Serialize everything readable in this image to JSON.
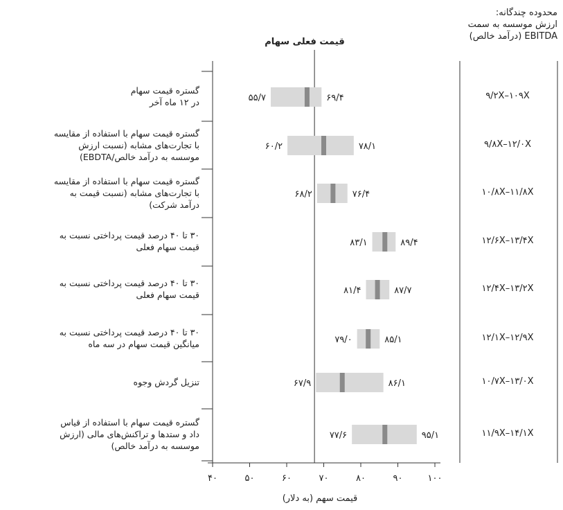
{
  "chart_data": {
    "type": "bar",
    "title": "قیمت فعلی سهام",
    "xlabel": "قیمت سهم (به دلار)",
    "xlim": [
      40,
      100
    ],
    "x_ticks": [
      "۴۰",
      "۵۰",
      "۶۰",
      "۷۰",
      "۸۰",
      "۹۰",
      "۱۰۰"
    ],
    "current_price": 67.5,
    "multiples_header": [
      "محدوده چندگانه:",
      "ارزش موسسه به سمت",
      "EBITDA (درآمد خالص)"
    ],
    "rows": [
      {
        "label": [
          "گستره قیمت سهام",
          "در ۱۲ ماه آخر"
        ],
        "low": 55.7,
        "high": 69.4,
        "mid": 65.5,
        "low_label": "۵۵/۷",
        "high_label": "۶۹/۴",
        "multiple": "۹/۲X–۱۰۹X"
      },
      {
        "label": [
          "گستره قیمت سهام با استفاده از مقایسه",
          "با تجارت‌های مشابه (نسبت ارزش",
          "موسسه به درآمد خالص/EBDTA)"
        ],
        "low": 60.2,
        "high": 78.1,
        "mid": 70.0,
        "low_label": "۶۰/۲",
        "high_label": "۷۸/۱",
        "multiple": "۹/۸X–۱۲/۰X"
      },
      {
        "label": [
          "گستره قیمت سهام با استفاده از مقایسه",
          "با تجارت‌های مشابه (نسبت قیمت به",
          "درآمد شرکت)"
        ],
        "low": 68.2,
        "high": 76.4,
        "mid": 72.5,
        "low_label": "۶۸/۲",
        "high_label": "۷۶/۴",
        "multiple": "۱۰/۸X–۱۱/۸X"
      },
      {
        "label": [
          "۳۰ تا ۴۰ درصد قیمت پرداختی نسبت به",
          "قیمت سهام فعلی"
        ],
        "low": 83.1,
        "high": 89.4,
        "mid": 86.5,
        "low_label": "۸۳/۱",
        "high_label": "۸۹/۴",
        "multiple": "۱۲/۶X–۱۳/۴X"
      },
      {
        "label": [
          "۳۰ تا ۴۰ درصد قیمت پرداختی نسبت به",
          "قیمت سهام فعلی"
        ],
        "low": 81.4,
        "high": 87.7,
        "mid": 84.5,
        "low_label": "۸۱/۴",
        "high_label": "۸۷/۷",
        "multiple": "۱۲/۴X–۱۳/۲X"
      },
      {
        "label": [
          "۳۰ تا ۴۰ درصد قیمت پرداختی نسبت به",
          "میانگین قیمت سهام در سه ماه"
        ],
        "low": 79.0,
        "high": 85.1,
        "mid": 82.0,
        "low_label": "۷۹/۰",
        "high_label": "۸۵/۱",
        "multiple": "۱۲/۱X–۱۲/۹X"
      },
      {
        "label": [
          "تنزیل گردش وجوه"
        ],
        "low": 67.9,
        "high": 86.1,
        "mid": 75.0,
        "low_label": "۶۷/۹",
        "high_label": "۸۶/۱",
        "multiple": "۱۰/۷X–۱۳/۰X"
      },
      {
        "label": [
          "گستره قیمت سهام با استفاده از قیاس",
          "داد و ستدها و تراکنش‌های مالی (ارزش",
          "موسسه به درآمد خالص)"
        ],
        "low": 77.6,
        "high": 95.1,
        "mid": 86.5,
        "low_label": "۷۷/۶",
        "high_label": "۹۵/۱",
        "multiple": "۱۱/۹X–۱۴/۱X"
      }
    ]
  },
  "colors": {
    "range_bar": "#d9d9d9",
    "mid_marker": "#8a8a8a",
    "line": "#333333",
    "text": "#222222"
  }
}
